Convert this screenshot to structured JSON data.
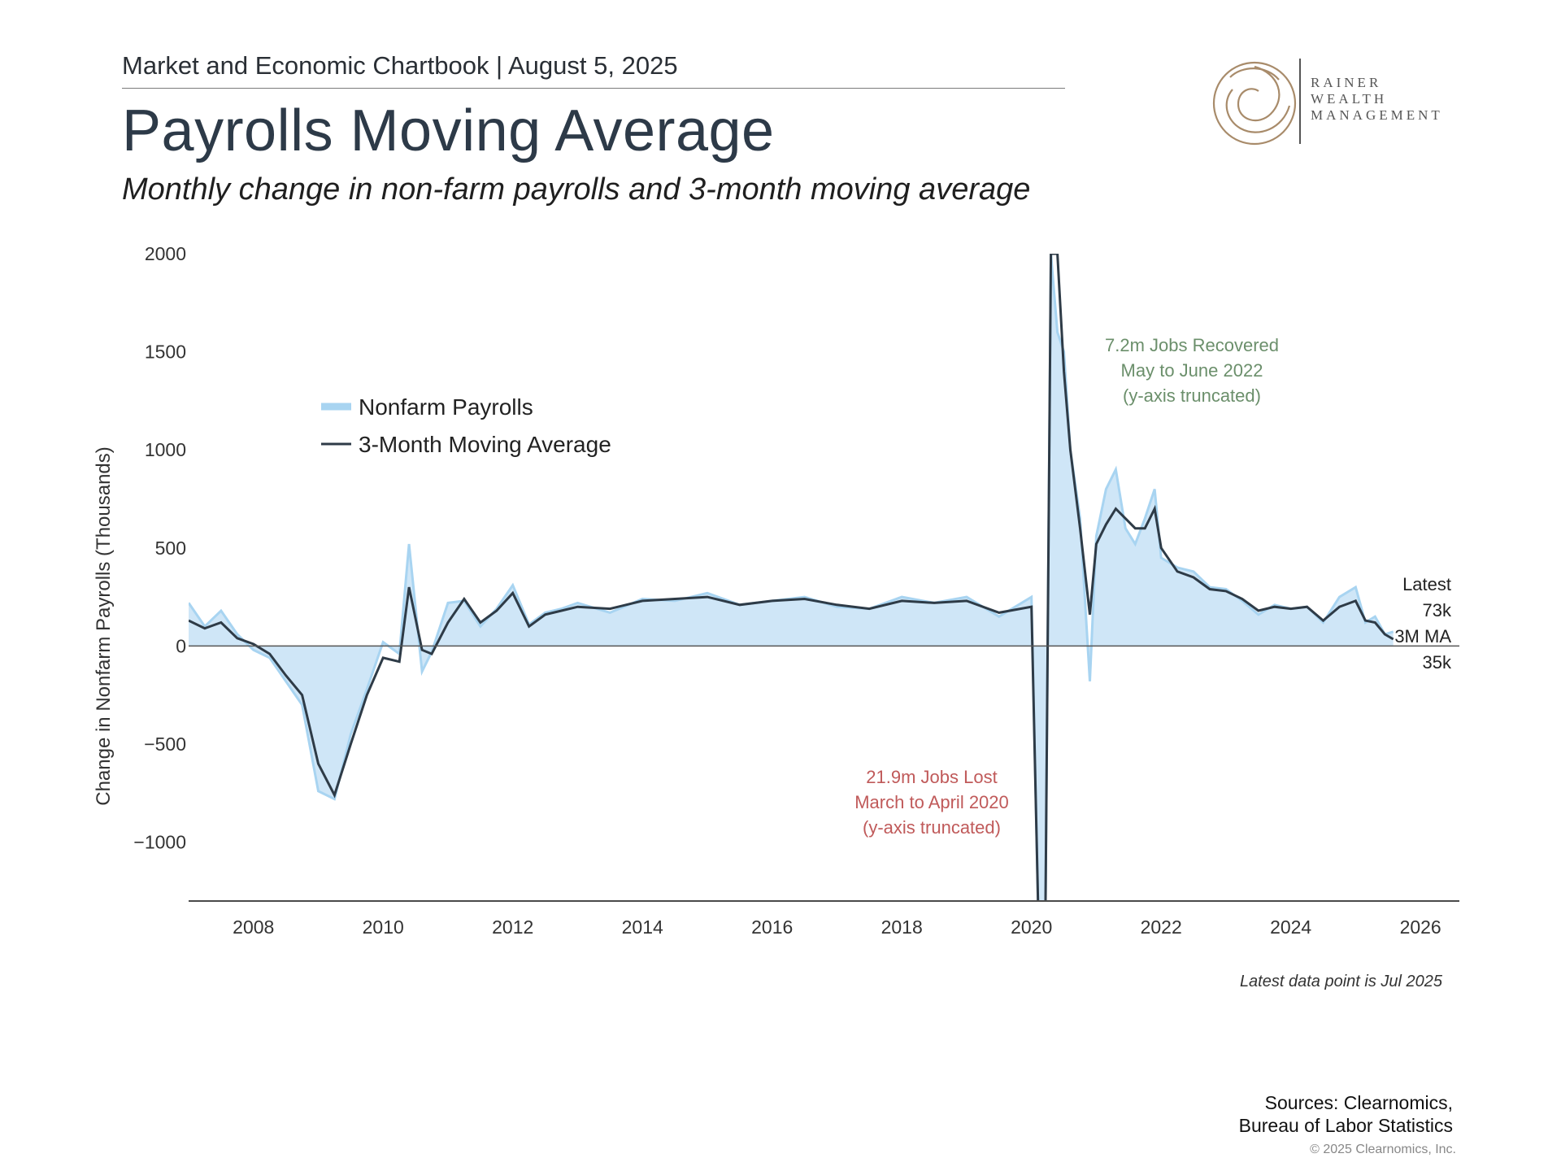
{
  "header": {
    "chartbook": "Market and Economic Chartbook | August 5, 2025",
    "title": "Payrolls Moving Average",
    "subtitle": "Monthly change in non-farm payrolls and 3-month moving average"
  },
  "logo": {
    "line1": "RAINER",
    "line2": "WEALTH",
    "line3": "MANAGEMENT",
    "color": "#a88b6a"
  },
  "footnote": "Latest data point is Jul 2025",
  "sources": {
    "line1": "Sources: Clearnomics,",
    "line2": "Bureau of Labor Statistics"
  },
  "copyright": "© 2025 Clearnomics, Inc.",
  "colors": {
    "fill": "#cfe6f7",
    "payrolls_line": "#a8d4f1",
    "ma_line": "#2e3b47",
    "axis": "#4a4a4a",
    "loss_note": "#c05a5a",
    "gain_note": "#6b8f6b"
  },
  "chart_data": {
    "type": "area",
    "ylabel": "Change in Nonfarm Payrolls (Thousands)",
    "ylim": [
      -1300,
      2000
    ],
    "yticks": [
      2000,
      1500,
      1000,
      500,
      0,
      -500,
      -1000
    ],
    "ytick_labels": [
      "2000",
      "1500",
      "1000",
      "500",
      "0",
      "−500",
      "−1000"
    ],
    "xlim": [
      2007.0,
      2026.6
    ],
    "xticks": [
      2008,
      2010,
      2012,
      2014,
      2016,
      2018,
      2020,
      2022,
      2024,
      2026
    ],
    "xtick_labels": [
      "2008",
      "2010",
      "2012",
      "2014",
      "2016",
      "2018",
      "2020",
      "2022",
      "2024",
      "2026"
    ],
    "legend": {
      "placement": "upper-left",
      "entries": [
        "Nonfarm Payrolls",
        "3-Month Moving Average"
      ]
    },
    "grid": false,
    "annotations": {
      "loss": [
        "21.9m Jobs Lost",
        "March to April 2020",
        "(y-axis truncated)"
      ],
      "gain": [
        "7.2m Jobs Recovered",
        "May to June 2022",
        "(y-axis truncated)"
      ],
      "latest": [
        "Latest",
        "73k",
        "3M MA",
        "35k"
      ]
    },
    "series": [
      {
        "name": "Nonfarm Payrolls",
        "x": [
          2007.0,
          2007.25,
          2007.5,
          2007.75,
          2008.0,
          2008.25,
          2008.5,
          2008.75,
          2009.0,
          2009.25,
          2009.5,
          2009.75,
          2010.0,
          2010.25,
          2010.4,
          2010.6,
          2010.75,
          2011.0,
          2011.25,
          2011.5,
          2011.75,
          2012.0,
          2012.25,
          2012.5,
          2012.75,
          2013.0,
          2013.5,
          2014.0,
          2014.5,
          2015.0,
          2015.5,
          2016.0,
          2016.5,
          2017.0,
          2017.5,
          2018.0,
          2018.5,
          2019.0,
          2019.5,
          2020.0,
          2020.1,
          2020.2,
          2020.3,
          2020.4,
          2020.5,
          2020.6,
          2020.75,
          2020.9,
          2021.0,
          2021.15,
          2021.3,
          2021.45,
          2021.6,
          2021.75,
          2021.9,
          2022.0,
          2022.25,
          2022.5,
          2022.75,
          2023.0,
          2023.25,
          2023.5,
          2023.75,
          2024.0,
          2024.25,
          2024.5,
          2024.75,
          2025.0,
          2025.15,
          2025.3,
          2025.45,
          2025.58
        ],
        "values": [
          220,
          100,
          180,
          60,
          -20,
          -60,
          -180,
          -300,
          -740,
          -780,
          -450,
          -220,
          20,
          -40,
          520,
          -130,
          -30,
          220,
          230,
          100,
          190,
          310,
          110,
          170,
          190,
          220,
          170,
          240,
          230,
          270,
          210,
          230,
          250,
          200,
          190,
          250,
          220,
          250,
          150,
          250,
          -1300,
          -2000,
          2000,
          1600,
          1500,
          1000,
          650,
          -180,
          560,
          800,
          900,
          600,
          520,
          650,
          800,
          450,
          400,
          380,
          300,
          290,
          230,
          160,
          210,
          190,
          200,
          120,
          250,
          300,
          120,
          150,
          60,
          73
        ]
      },
      {
        "name": "3-Month Moving Average",
        "x": [
          2007.0,
          2007.25,
          2007.5,
          2007.75,
          2008.0,
          2008.25,
          2008.5,
          2008.75,
          2009.0,
          2009.25,
          2009.5,
          2009.75,
          2010.0,
          2010.25,
          2010.4,
          2010.6,
          2010.75,
          2011.0,
          2011.25,
          2011.5,
          2011.75,
          2012.0,
          2012.25,
          2012.5,
          2012.75,
          2013.0,
          2013.5,
          2014.0,
          2014.5,
          2015.0,
          2015.5,
          2016.0,
          2016.5,
          2017.0,
          2017.5,
          2018.0,
          2018.5,
          2019.0,
          2019.5,
          2020.0,
          2020.1,
          2020.2,
          2020.3,
          2020.4,
          2020.5,
          2020.6,
          2020.75,
          2020.9,
          2021.0,
          2021.15,
          2021.3,
          2021.45,
          2021.6,
          2021.75,
          2021.9,
          2022.0,
          2022.25,
          2022.5,
          2022.75,
          2023.0,
          2023.25,
          2023.5,
          2023.75,
          2024.0,
          2024.25,
          2024.5,
          2024.75,
          2025.0,
          2025.15,
          2025.3,
          2025.45,
          2025.58
        ],
        "values": [
          130,
          90,
          120,
          40,
          10,
          -40,
          -150,
          -250,
          -600,
          -760,
          -500,
          -250,
          -60,
          -80,
          300,
          -20,
          -40,
          120,
          240,
          120,
          180,
          270,
          100,
          160,
          180,
          200,
          190,
          230,
          240,
          250,
          210,
          230,
          240,
          210,
          190,
          230,
          220,
          230,
          170,
          200,
          -1300,
          -2000,
          2000,
          2000,
          1400,
          1000,
          600,
          160,
          520,
          620,
          700,
          650,
          600,
          600,
          700,
          500,
          380,
          350,
          290,
          280,
          240,
          180,
          200,
          190,
          200,
          130,
          200,
          230,
          130,
          120,
          60,
          35
        ]
      }
    ]
  }
}
